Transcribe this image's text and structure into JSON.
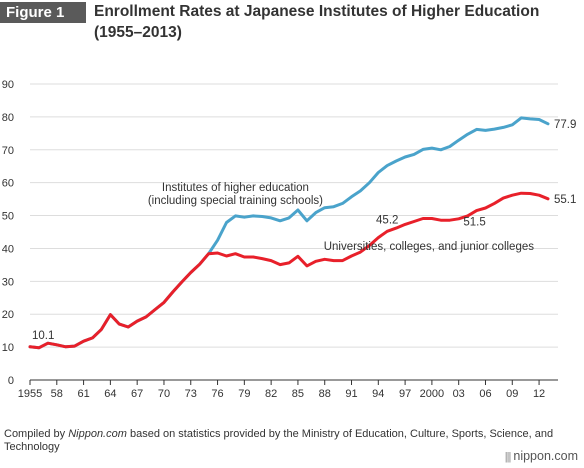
{
  "header": {
    "figure_label": "Figure 1",
    "title_line1": "Enrollment Rates at Japanese Institutes of Higher Education",
    "title_line2": "(1955–2013)"
  },
  "footer": {
    "source_prefix": "Compiled by ",
    "source_site": "Nippon.com",
    "source_suffix": " based on statistics provided by the Ministry of Education, Culture, Sports, Science, and Technology",
    "brand": "nippon.com"
  },
  "colors": {
    "blue_series": "#4aa3cb",
    "red_series": "#e8202a",
    "axis": "#333333",
    "grid": "#dddddd"
  },
  "chart_data": {
    "type": "line",
    "title": "Enrollment Rates at Japanese Institutes of Higher Education (1955–2013)",
    "xlabel": "",
    "ylabel": "",
    "ylim": [
      0,
      90
    ],
    "xlim": [
      1955,
      2013
    ],
    "yticks": [
      0,
      10,
      20,
      30,
      40,
      50,
      60,
      70,
      80,
      90
    ],
    "xticks": [
      {
        "value": 1955,
        "label": "1955"
      },
      {
        "value": 1958,
        "label": "58"
      },
      {
        "value": 1961,
        "label": "61"
      },
      {
        "value": 1964,
        "label": "64"
      },
      {
        "value": 1967,
        "label": "67"
      },
      {
        "value": 1970,
        "label": "70"
      },
      {
        "value": 1973,
        "label": "73"
      },
      {
        "value": 1976,
        "label": "76"
      },
      {
        "value": 1979,
        "label": "79"
      },
      {
        "value": 1982,
        "label": "82"
      },
      {
        "value": 1985,
        "label": "85"
      },
      {
        "value": 1988,
        "label": "88"
      },
      {
        "value": 1991,
        "label": "91"
      },
      {
        "value": 1994,
        "label": "94"
      },
      {
        "value": 1997,
        "label": "97"
      },
      {
        "value": 2000,
        "label": "2000"
      },
      {
        "value": 2003,
        "label": "03"
      },
      {
        "value": 2006,
        "label": "06"
      },
      {
        "value": 2009,
        "label": "09"
      },
      {
        "value": 2012,
        "label": "12"
      }
    ],
    "series": [
      {
        "name": "Institutes of higher education (including special training schools)",
        "label_line1": "Institutes of higher education",
        "label_line2": "(including special training schools)",
        "color": "#4aa3cb",
        "x": [
          1955,
          1956,
          1957,
          1958,
          1959,
          1960,
          1961,
          1962,
          1963,
          1964,
          1965,
          1966,
          1967,
          1968,
          1969,
          1970,
          1971,
          1972,
          1973,
          1974,
          1975,
          1976,
          1977,
          1978,
          1979,
          1980,
          1981,
          1982,
          1983,
          1984,
          1985,
          1986,
          1987,
          1988,
          1989,
          1990,
          1991,
          1992,
          1993,
          1994,
          1995,
          1996,
          1997,
          1998,
          1999,
          2000,
          2001,
          2002,
          2003,
          2004,
          2005,
          2006,
          2007,
          2008,
          2009,
          2010,
          2011,
          2012,
          2013
        ],
        "values": [
          10.1,
          9.8,
          11.2,
          10.7,
          10.1,
          10.3,
          11.8,
          12.8,
          15.4,
          19.9,
          17.0,
          16.1,
          17.9,
          19.2,
          21.4,
          23.6,
          26.8,
          29.8,
          32.7,
          35.2,
          38.4,
          42.5,
          47.9,
          49.9,
          49.5,
          49.9,
          49.7,
          49.3,
          48.4,
          49.3,
          51.7,
          48.4,
          50.9,
          52.4,
          52.7,
          53.7,
          55.7,
          57.5,
          60.0,
          63.1,
          65.2,
          66.6,
          67.8,
          68.6,
          70.1,
          70.5,
          70.0,
          71.0,
          72.9,
          74.7,
          76.2,
          75.9,
          76.3,
          76.8,
          77.6,
          79.7,
          79.4,
          79.2,
          77.9
        ],
        "annotations": [
          {
            "x": 2013,
            "value": 77.9,
            "label": "77.9"
          }
        ]
      },
      {
        "name": "Universities, colleges, and junior colleges",
        "label_line1": "Universities, colleges, and junior colleges",
        "color": "#e8202a",
        "x": [
          1955,
          1956,
          1957,
          1958,
          1959,
          1960,
          1961,
          1962,
          1963,
          1964,
          1965,
          1966,
          1967,
          1968,
          1969,
          1970,
          1971,
          1972,
          1973,
          1974,
          1975,
          1976,
          1977,
          1978,
          1979,
          1980,
          1981,
          1982,
          1983,
          1984,
          1985,
          1986,
          1987,
          1988,
          1989,
          1990,
          1991,
          1992,
          1993,
          1994,
          1995,
          1996,
          1997,
          1998,
          1999,
          2000,
          2001,
          2002,
          2003,
          2004,
          2005,
          2006,
          2007,
          2008,
          2009,
          2010,
          2011,
          2012,
          2013
        ],
        "values": [
          10.1,
          9.8,
          11.2,
          10.7,
          10.1,
          10.3,
          11.8,
          12.8,
          15.4,
          19.9,
          17.0,
          16.1,
          17.9,
          19.2,
          21.4,
          23.6,
          26.8,
          29.8,
          32.7,
          35.2,
          38.4,
          38.6,
          37.7,
          38.4,
          37.4,
          37.4,
          36.9,
          36.3,
          35.1,
          35.6,
          37.6,
          34.7,
          36.1,
          36.7,
          36.3,
          36.3,
          37.7,
          38.9,
          40.9,
          43.3,
          45.2,
          46.2,
          47.3,
          48.2,
          49.1,
          49.1,
          48.6,
          48.6,
          49.0,
          49.9,
          51.5,
          52.3,
          53.7,
          55.3,
          56.2,
          56.8,
          56.7,
          56.2,
          55.1
        ],
        "annotations": [
          {
            "x": 1955,
            "value": 10.1,
            "label": "10.1"
          },
          {
            "x": 1995,
            "value": 45.2,
            "label": "45.2"
          },
          {
            "x": 2005,
            "value": 51.5,
            "label": "51.5"
          },
          {
            "x": 2013,
            "value": 55.1,
            "label": "55.1"
          }
        ]
      }
    ],
    "grid": true,
    "legend": "inline labels"
  }
}
